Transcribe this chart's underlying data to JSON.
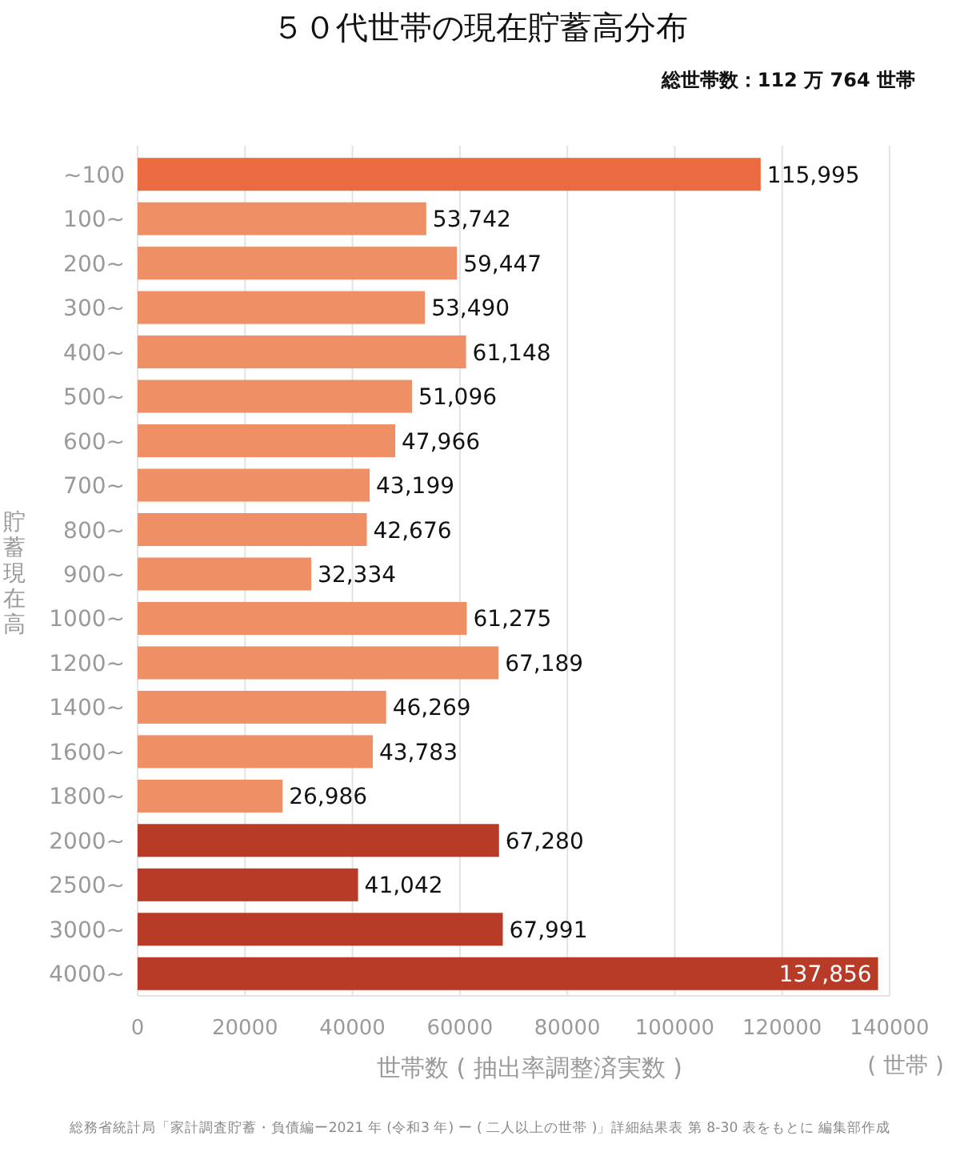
{
  "chart_data": {
    "type": "bar",
    "orientation": "horizontal",
    "title": "５０代世帯の現在貯蓄高分布",
    "xlabel": "世帯数 ( 抽出率調整済実数 )",
    "ylabel": "貯蓄現在高",
    "categories": [
      "~100",
      "100~",
      "200~",
      "300~",
      "400~",
      "500~",
      "600~",
      "700~",
      "800~",
      "900~",
      "1000~",
      "1200~",
      "1400~",
      "1600~",
      "1800~",
      "2000~",
      "2500~",
      "3000~",
      "4000~"
    ],
    "values": [
      115995,
      53742,
      59447,
      53490,
      61148,
      51096,
      47966,
      43199,
      42676,
      32334,
      61275,
      67189,
      46269,
      43783,
      26986,
      67280,
      41042,
      67991,
      137856
    ],
    "colors": [
      "#ec6a3f",
      "#ef8f66",
      "#ef8f66",
      "#ef8f66",
      "#ef8f66",
      "#ef8f66",
      "#ef8f66",
      "#ef8f66",
      "#ef8f66",
      "#ef8f66",
      "#ef8f66",
      "#ef8f66",
      "#ef8f66",
      "#ef8f66",
      "#ef8f66",
      "#b83b28",
      "#b83b28",
      "#b83b28",
      "#b83b28"
    ],
    "value_labels": [
      "115,995",
      "53,742",
      "59,447",
      "53,490",
      "61,148",
      "51,096",
      "47,966",
      "43,199",
      "42,676",
      "32,334",
      "61,275",
      "67,189",
      "46,269",
      "43,783",
      "26,986",
      "67,280",
      "41,042",
      "67,991",
      "137,856"
    ],
    "xlim": [
      0,
      140000
    ],
    "xticks": [
      0,
      20000,
      40000,
      60000,
      80000,
      100000,
      120000,
      140000
    ],
    "grid": "x",
    "annotations": [
      "総世帯数：112 万 764 世帯",
      "( 世帯 )",
      "総務省統計局「家計調査貯蓄・負債編ー2021 年 (令和3 年) ー ( 二人以上の世帯 )」詳細結果表 第 8-30 表をもとに 編集部作成"
    ]
  }
}
